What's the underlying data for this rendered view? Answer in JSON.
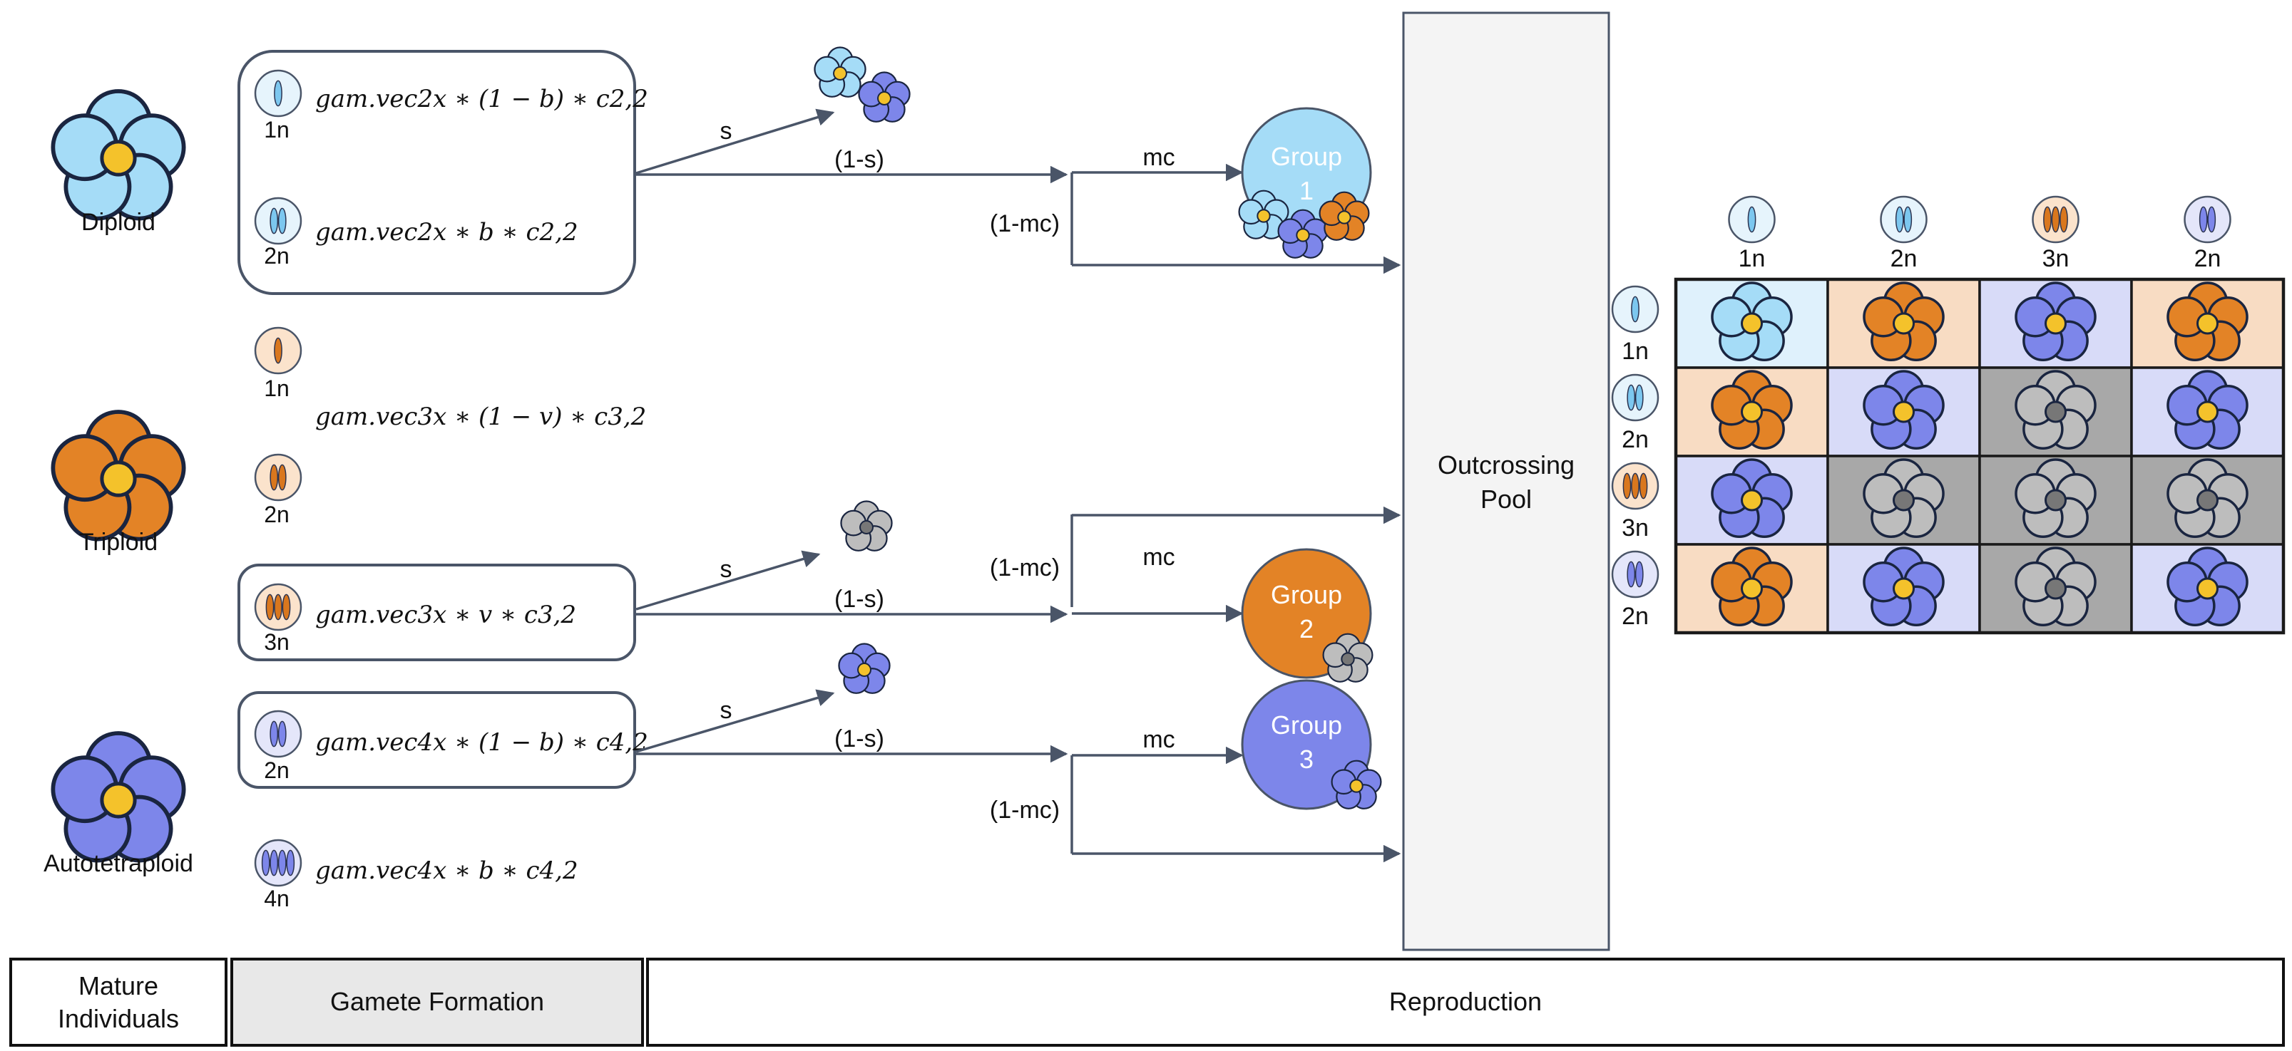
{
  "colors": {
    "diploid": "#a5dcf7",
    "triploid": "#e38326",
    "tetraploid": "#7d86ea",
    "sterile": "#bdbdbd",
    "center": "#f4c22b",
    "cell_diploid": "#dff1fc",
    "cell_triploid": "#f8dcc3",
    "cell_tetraploid": "#d8dbf8",
    "cell_sterile": "#a8a8a8",
    "group_1": "#a5dcf7",
    "group_2": "#e38326",
    "group_3": "#7d86ea",
    "arrow": "#4a5568"
  },
  "individuals": [
    {
      "label": "Diploid",
      "icon": "flower-icon"
    },
    {
      "label": "Triploid",
      "icon": "flower-icon"
    },
    {
      "label": "Autotetraploid",
      "icon": "flower-icon"
    }
  ],
  "gametes": {
    "diploid_1n": {
      "ploidy": "1n",
      "formula": "gam.vec2x ∗ (1 − b) ∗ c2,2"
    },
    "diploid_2n": {
      "ploidy": "2n",
      "formula": "gam.vec2x ∗ b ∗ c2,2"
    },
    "triploid_1n": {
      "ploidy": "1n"
    },
    "triploid_formula": "gam.vec3x ∗ (1 − v) ∗ c3,2",
    "triploid_2n": {
      "ploidy": "2n"
    },
    "triploid_3n": {
      "ploidy": "3n",
      "formula": "gam.vec3x ∗ v ∗ c3,2"
    },
    "tetraploid_2n": {
      "ploidy": "2n",
      "formula": "gam.vec4x ∗ (1 − b) ∗ c4,2"
    },
    "tetraploid_4n": {
      "ploidy": "4n",
      "formula": "gam.vec4x ∗ b ∗ c4,2"
    }
  },
  "flow_labels": {
    "s": "s",
    "one_minus_s": "(1-s)",
    "mc": "mc",
    "one_minus_mc": "(1-mc)"
  },
  "groups": [
    {
      "label": "Group",
      "number": "1"
    },
    {
      "label": "Group",
      "number": "2"
    },
    {
      "label": "Group",
      "number": "3"
    }
  ],
  "pool": {
    "line1": "Outcrossing",
    "line2": "Pool"
  },
  "matrix": {
    "columns": [
      "1n",
      "2n",
      "3n",
      "2n"
    ],
    "rows": [
      "1n",
      "2n",
      "3n",
      "2n"
    ],
    "cells": [
      [
        "diploid",
        "triploid",
        "tetraploid",
        "triploid"
      ],
      [
        "triploid",
        "tetraploid",
        "sterile",
        "tetraploid"
      ],
      [
        "tetraploid",
        "sterile",
        "sterile",
        "sterile"
      ],
      [
        "triploid",
        "tetraploid",
        "sterile",
        "tetraploid"
      ]
    ]
  },
  "stages": [
    "Mature Individuals",
    "Gamete Formation",
    "Reproduction"
  ],
  "stage_lines": {
    "mature_line1": "Mature",
    "mature_line2": "Individuals"
  }
}
